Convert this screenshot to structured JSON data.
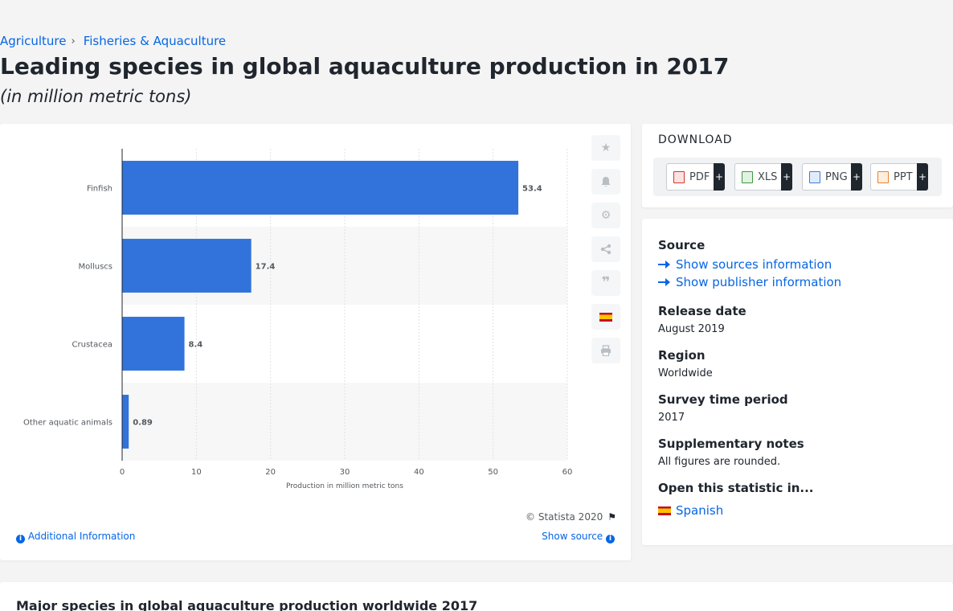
{
  "breadcrumb": {
    "item1": "Agriculture",
    "sep": "›",
    "item2": "Fisheries & Aquaculture"
  },
  "title": "Leading species in global aquaculture production in 2017",
  "subtitle": "(in million metric tons)",
  "chart_data": {
    "type": "bar",
    "orientation": "horizontal",
    "categories": [
      "Finfish",
      "Molluscs",
      "Crustacea",
      "Other aquatic animals"
    ],
    "values": [
      53.4,
      17.4,
      8.4,
      0.89
    ],
    "value_labels": [
      "53.4",
      "17.4",
      "8.4",
      "0.89"
    ],
    "xlabel": "Production in million metric tons",
    "xlim": [
      0,
      60
    ],
    "xticks": [
      0,
      10,
      20,
      30,
      40,
      50,
      60
    ],
    "grid": true,
    "bar_color": "#3173db",
    "title": ""
  },
  "chart_footer": {
    "copyright": "© Statista 2020",
    "additional_info": "Additional Information",
    "show_source": "Show source"
  },
  "tools": [
    "star-icon",
    "bell-icon",
    "gear-icon",
    "share-icon",
    "quote-icon",
    "flag-spain-icon",
    "print-icon"
  ],
  "download": {
    "heading": "DOWNLOAD",
    "buttons": [
      {
        "label": "PDF",
        "plus": "+",
        "color": "#d9332f"
      },
      {
        "label": "XLS",
        "plus": "+",
        "color": "#3b9a3e"
      },
      {
        "label": "PNG",
        "plus": "+",
        "color": "#3b7dd8"
      },
      {
        "label": "PPT",
        "plus": "+",
        "color": "#e8822a"
      }
    ]
  },
  "meta": {
    "source_label": "Source",
    "show_sources": "Show sources information",
    "show_publisher": "Show publisher information",
    "release_label": "Release date",
    "release_value": "August 2019",
    "region_label": "Region",
    "region_value": "Worldwide",
    "survey_label": "Survey time period",
    "survey_value": "2017",
    "notes_label": "Supplementary notes",
    "notes_value": "All figures are rounded.",
    "open_label": "Open this statistic in...",
    "open_value": "Spanish"
  },
  "bottom": {
    "title": "Major species in global aquaculture production worldwide 2017"
  }
}
